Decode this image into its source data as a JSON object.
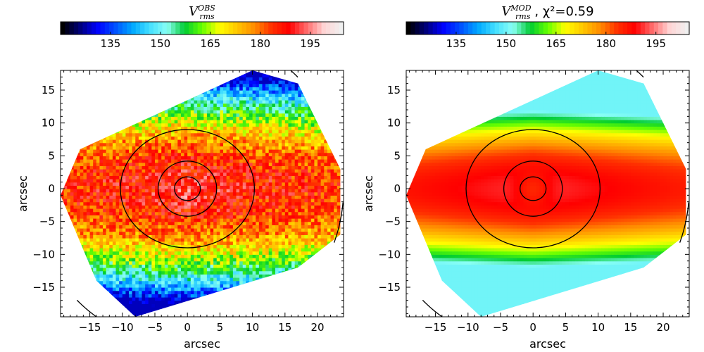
{
  "colors": {
    "jet": [
      "#000000",
      "#00007a",
      "#0000ff",
      "#0050ff",
      "#00a8ff",
      "#44e0ff",
      "#8afff4",
      "#00cc33",
      "#66ff00",
      "#ffff00",
      "#ffc800",
      "#ff8c00",
      "#ff3000",
      "#ff0000",
      "#ff6a6a",
      "#ffd5d5",
      "#f0f0f0"
    ],
    "contour": "#000000"
  },
  "chart_data": [
    {
      "type": "heatmap",
      "panel": "observed",
      "title_main": "V",
      "title_sup": "OBS",
      "title_sub": "rms",
      "title_rest": "",
      "xlabel": "arcsec",
      "ylabel": "arcsec",
      "xlim": [
        -19.5,
        24
      ],
      "ylim": [
        -19.5,
        18
      ],
      "xticks": [
        -15,
        -10,
        -5,
        0,
        5,
        10,
        15,
        20
      ],
      "yticks": [
        -15,
        -10,
        -5,
        0,
        5,
        10,
        15
      ],
      "colorbar": {
        "range": [
          120,
          205
        ],
        "ticks": [
          135,
          150,
          165,
          180,
          195
        ]
      },
      "field_corners": [
        [
          -19.5,
          -1
        ],
        [
          -16.5,
          6
        ],
        [
          10,
          18
        ],
        [
          17,
          16
        ],
        [
          23.5,
          3
        ],
        [
          23.5,
          -7
        ],
        [
          17,
          -12
        ],
        [
          -8,
          -19.5
        ],
        [
          -14,
          -14
        ]
      ],
      "contours": [
        {
          "type": "ellipse",
          "cx": 0,
          "cy": 0,
          "rx": 2,
          "ry": 1.8
        },
        {
          "type": "ellipse",
          "cx": 0,
          "cy": 0,
          "rx": 4.5,
          "ry": 4.2
        },
        {
          "type": "ellipse",
          "cx": 0,
          "cy": 0,
          "rx": 10.3,
          "ry": 9
        }
      ],
      "contour_arcs": [
        {
          "cx": 0,
          "cy": 0,
          "r": 24,
          "from_deg": 45,
          "to_deg": 60
        },
        {
          "cx": 0,
          "cy": 0,
          "r": 24,
          "from_deg": -20,
          "to_deg": -5
        }
      ],
      "model": {
        "center": 192,
        "major_axis": 190,
        "minor_falloff": 6.5,
        "edge_min": 128,
        "noise": 8
      }
    },
    {
      "type": "heatmap",
      "panel": "model",
      "title_main": "V",
      "title_sup": "MOD",
      "title_sub": "rms",
      "title_rest": ", χ²=0.59",
      "xlabel": "arcsec",
      "ylabel": "arcsec",
      "xlim": [
        -19.5,
        24
      ],
      "ylim": [
        -19.5,
        18
      ],
      "xticks": [
        -15,
        -10,
        -5,
        0,
        5,
        10,
        15,
        20
      ],
      "yticks": [
        -15,
        -10,
        -5,
        0,
        5,
        10,
        15
      ],
      "colorbar": {
        "range": [
          120,
          205
        ],
        "ticks": [
          135,
          150,
          165,
          180,
          195
        ]
      },
      "field_corners": [
        [
          -19.5,
          -1
        ],
        [
          -16.5,
          6
        ],
        [
          10,
          18
        ],
        [
          17,
          16
        ],
        [
          23.5,
          3
        ],
        [
          23.5,
          -7
        ],
        [
          17,
          -12
        ],
        [
          -8,
          -19.5
        ],
        [
          -14,
          -14
        ]
      ],
      "contours": [
        {
          "type": "ellipse",
          "cx": 0,
          "cy": 0,
          "rx": 2,
          "ry": 1.8
        },
        {
          "type": "ellipse",
          "cx": 0,
          "cy": 0,
          "rx": 4.5,
          "ry": 4.2
        },
        {
          "type": "ellipse",
          "cx": 0,
          "cy": 0,
          "rx": 10.3,
          "ry": 9
        }
      ],
      "contour_arcs": [
        {
          "cx": 0,
          "cy": 0,
          "r": 24,
          "from_deg": 45,
          "to_deg": 60
        },
        {
          "cx": 0,
          "cy": 0,
          "r": 24,
          "from_deg": -20,
          "to_deg": -5
        }
      ],
      "model": {
        "center": 185,
        "major_axis": 192,
        "minor_falloff": 5.5,
        "edge_min": 150,
        "noise": 0
      }
    }
  ]
}
